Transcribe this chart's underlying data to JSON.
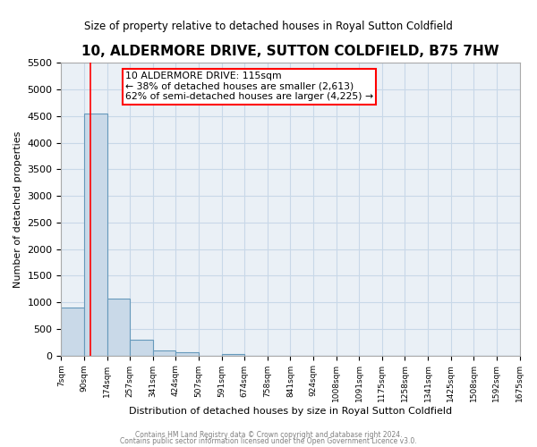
{
  "title": "10, ALDERMORE DRIVE, SUTTON COLDFIELD, B75 7HW",
  "subtitle": "Size of property relative to detached houses in Royal Sutton Coldfield",
  "xlabel": "Distribution of detached houses by size in Royal Sutton Coldfield",
  "ylabel": "Number of detached properties",
  "bin_labels": [
    "7sqm",
    "90sqm",
    "174sqm",
    "257sqm",
    "341sqm",
    "424sqm",
    "507sqm",
    "591sqm",
    "674sqm",
    "758sqm",
    "841sqm",
    "924sqm",
    "1008sqm",
    "1091sqm",
    "1175sqm",
    "1258sqm",
    "1341sqm",
    "1425sqm",
    "1508sqm",
    "1592sqm",
    "1675sqm"
  ],
  "bar_values": [
    900,
    4550,
    1075,
    290,
    100,
    60,
    0,
    30,
    0,
    0,
    0,
    0,
    0,
    0,
    0,
    0,
    0,
    0,
    0,
    0
  ],
  "bar_color": "#c9d9e8",
  "bar_edge_color": "#6699bb",
  "red_line_x": 1.27,
  "ylim": [
    0,
    5500
  ],
  "yticks": [
    0,
    500,
    1000,
    1500,
    2000,
    2500,
    3000,
    3500,
    4000,
    4500,
    5000,
    5500
  ],
  "annotation_box_text": "10 ALDERMORE DRIVE: 115sqm\n← 38% of detached houses are smaller (2,613)\n62% of semi-detached houses are larger (4,225) →",
  "grid_color": "#c8d8e8",
  "bg_color": "#eaf0f6",
  "footer1": "Contains HM Land Registry data © Crown copyright and database right 2024.",
  "footer2": "Contains public sector information licensed under the Open Government Licence v3.0."
}
